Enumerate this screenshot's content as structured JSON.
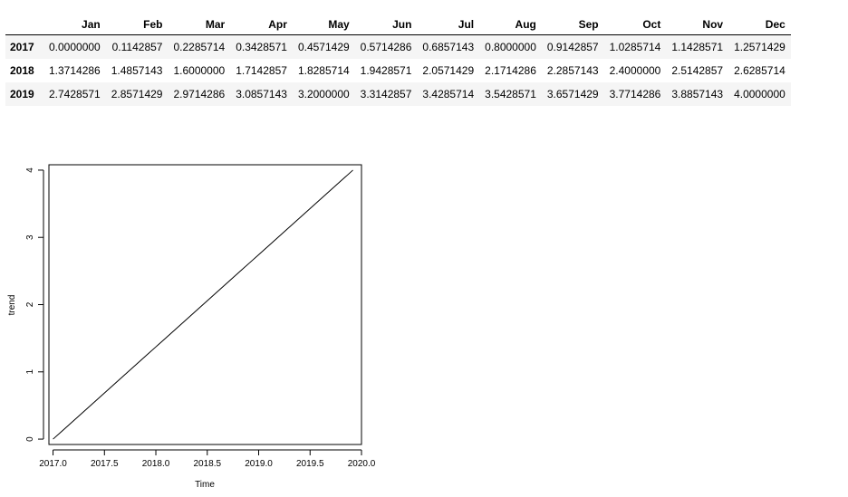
{
  "table": {
    "months": [
      "Jan",
      "Feb",
      "Mar",
      "Apr",
      "May",
      "Jun",
      "Jul",
      "Aug",
      "Sep",
      "Oct",
      "Nov",
      "Dec"
    ],
    "rows": [
      {
        "year": "2017",
        "values": [
          "0.0000000",
          "0.1142857",
          "0.2285714",
          "0.3428571",
          "0.4571429",
          "0.5714286",
          "0.6857143",
          "0.8000000",
          "0.9142857",
          "1.0285714",
          "1.1428571",
          "1.2571429"
        ]
      },
      {
        "year": "2018",
        "values": [
          "1.3714286",
          "1.4857143",
          "1.6000000",
          "1.7142857",
          "1.8285714",
          "1.9428571",
          "2.0571429",
          "2.1714286",
          "2.2857143",
          "2.4000000",
          "2.5142857",
          "2.6285714"
        ]
      },
      {
        "year": "2019",
        "values": [
          "2.7428571",
          "2.8571429",
          "2.9714286",
          "3.0857143",
          "3.2000000",
          "3.3142857",
          "3.4285714",
          "3.5428571",
          "3.6571429",
          "3.7714286",
          "3.8857143",
          "4.0000000"
        ]
      }
    ]
  },
  "chart_data": {
    "type": "line",
    "xlabel": "Time",
    "ylabel": "trend",
    "xlim": [
      2016.96,
      2020.0
    ],
    "ylim": [
      -0.08,
      4.08
    ],
    "x_ticks": [
      2017.0,
      2017.5,
      2018.0,
      2018.5,
      2019.0,
      2019.5,
      2020.0
    ],
    "x_tick_labels": [
      "2017.0",
      "2017.5",
      "2018.0",
      "2018.5",
      "2019.0",
      "2019.5",
      "2020.0"
    ],
    "y_ticks": [
      0,
      1,
      2,
      3,
      4
    ],
    "y_tick_labels": [
      "0",
      "1",
      "2",
      "3",
      "4"
    ],
    "series": [
      {
        "x_start": 2017.0,
        "x_step": 0.0833333,
        "values": [
          0.0,
          0.1142857,
          0.2285714,
          0.3428571,
          0.4571429,
          0.5714286,
          0.6857143,
          0.8,
          0.9142857,
          1.0285714,
          1.1428571,
          1.2571429,
          1.3714286,
          1.4857143,
          1.6,
          1.7142857,
          1.8285714,
          1.9428571,
          2.0571429,
          2.1714286,
          2.2857143,
          2.4,
          2.5142857,
          2.6285714,
          2.7428571,
          2.8571429,
          2.9714286,
          3.0857143,
          3.2,
          3.3142857,
          3.4285714,
          3.5428571,
          3.6571429,
          3.7714286,
          3.8857143,
          4.0
        ]
      }
    ],
    "grid": false,
    "line_color": "#000000"
  }
}
